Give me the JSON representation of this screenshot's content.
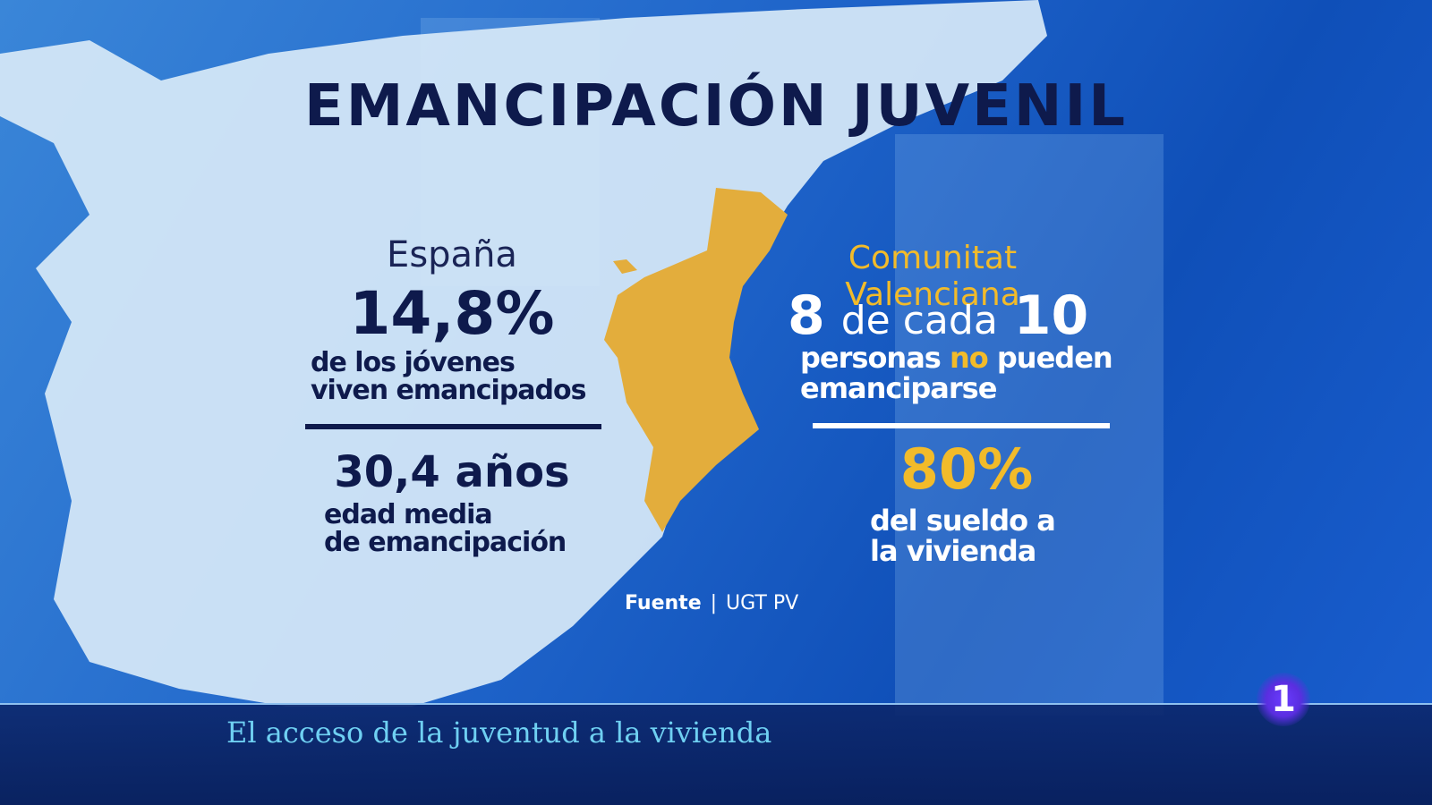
{
  "title": "EMANCIPACIÓN JUVENIL",
  "spain": {
    "label": "España",
    "stat": "14,8%",
    "stat_text": [
      "de los jóvenes",
      "viven emancipados"
    ],
    "age": "30,4 años",
    "age_text": [
      "edad media",
      "de emancipación"
    ]
  },
  "valencia": {
    "label": "Comunitat Valenciana",
    "ratio": [
      "8",
      "de cada",
      "10"
    ],
    "text_line1": [
      "personas",
      "no",
      "pueden"
    ],
    "text_line2": "emanciparse",
    "stat": "80%",
    "stat_text": [
      "del sueldo a",
      "la vivienda"
    ]
  },
  "source": {
    "label": "Fuente",
    "value": "UGT PV"
  },
  "ticker": "El acceso de la juventud a la vivienda",
  "channel_logo": "1"
}
